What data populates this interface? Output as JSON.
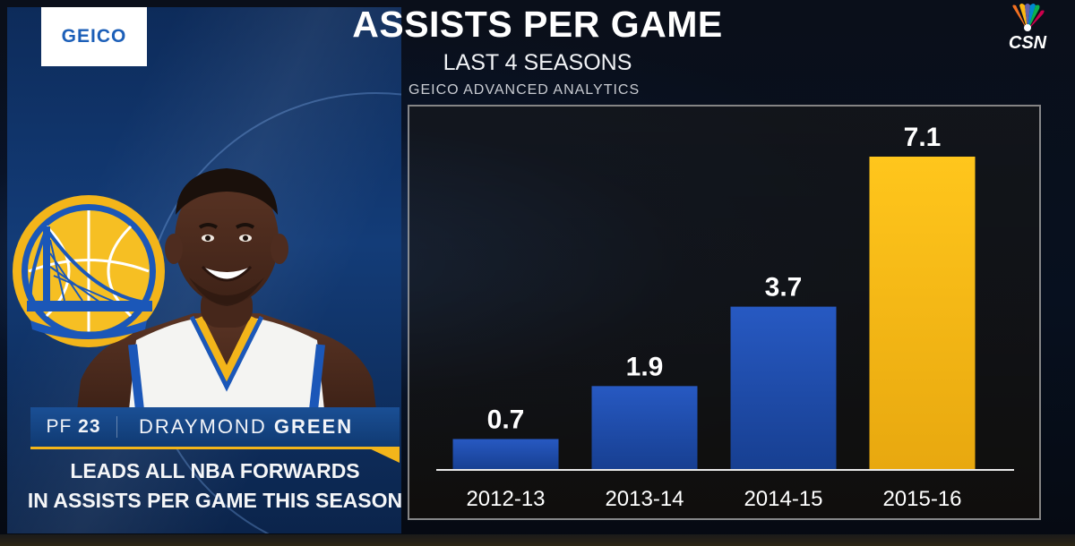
{
  "header": {
    "title": "ASSISTS PER GAME",
    "subtitle": "LAST 4 SEASONS",
    "sponsor_line": "GEICO ADVANCED ANALYTICS",
    "sponsor_logo": "GEICO",
    "network_logo": "CSN"
  },
  "player": {
    "position": "PF",
    "number": "23",
    "first_name": "DRAYMOND",
    "last_name": "GREEN",
    "caption_line1": "LEADS ALL NBA FORWARDS",
    "caption_line2": "IN ASSISTS PER GAME THIS SEASON"
  },
  "colors": {
    "team_blue": "#1b57b8",
    "team_gold": "#f3b51a",
    "bar_blue": "#1d4fb0",
    "bar_gold": "#f6bb16"
  },
  "chart_data": {
    "type": "bar",
    "categories": [
      "2012-13",
      "2013-14",
      "2014-15",
      "2015-16"
    ],
    "values": [
      0.7,
      1.9,
      3.7,
      7.1
    ],
    "value_labels": [
      "0.7",
      "1.9",
      "3.7",
      "7.1"
    ],
    "highlight_index": 3,
    "ylim": [
      0,
      8
    ],
    "grid": false,
    "legend": "none"
  }
}
